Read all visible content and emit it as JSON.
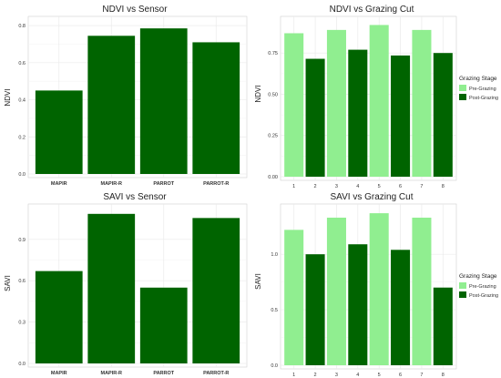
{
  "colors": {
    "pre": "#90ee90",
    "post": "#006400",
    "sensor": "#006400",
    "grid": "#ebebeb",
    "frame": "#d0d0d0"
  },
  "chart_data": [
    {
      "type": "bar",
      "title": "NDVI vs Sensor",
      "xlabel": "",
      "ylabel": "NDVI",
      "categories": [
        "MAPIR",
        "MAPIR-R",
        "PARROT",
        "PARROT-R"
      ],
      "values": [
        0.45,
        0.745,
        0.785,
        0.71
      ],
      "ylim": [
        0,
        0.83
      ],
      "yticks": [
        0.0,
        0.2,
        0.4,
        0.6,
        0.8
      ],
      "ytick_labels": [
        "0.0",
        "0.2",
        "0.4",
        "0.6",
        "0.8"
      ],
      "grid": true
    },
    {
      "type": "bar",
      "title": "NDVI vs Grazing Cut",
      "xlabel": "",
      "ylabel": "NDVI",
      "categories": [
        "1",
        "2",
        "3",
        "4",
        "5",
        "6",
        "7",
        "8"
      ],
      "values": [
        0.87,
        0.715,
        0.89,
        0.77,
        0.92,
        0.735,
        0.89,
        0.75
      ],
      "series_of_bar": [
        "pre",
        "post",
        "pre",
        "post",
        "pre",
        "post",
        "pre",
        "post"
      ],
      "ylim": [
        0,
        0.95
      ],
      "yticks": [
        0.0,
        0.25,
        0.5,
        0.75
      ],
      "ytick_labels": [
        "0.00",
        "0.25",
        "0.50",
        "0.75"
      ],
      "grid": true,
      "legend": {
        "title": "Grazing Stage",
        "position": "right",
        "entries": [
          {
            "label": "Pre-Grazing",
            "key": "pre"
          },
          {
            "label": "Post-Grazing",
            "key": "post"
          }
        ]
      }
    },
    {
      "type": "bar",
      "title": "SAVI vs Sensor",
      "xlabel": "",
      "ylabel": "SAVI",
      "categories": [
        "MAPIR",
        "MAPIR-R",
        "PARROT",
        "PARROT-R"
      ],
      "values": [
        0.67,
        1.085,
        0.55,
        1.055
      ],
      "ylim": [
        0,
        1.13
      ],
      "yticks": [
        0.0,
        0.3,
        0.6,
        0.9
      ],
      "ytick_labels": [
        "0.0",
        "0.3",
        "0.6",
        "0.9"
      ],
      "grid": true
    },
    {
      "type": "bar",
      "title": "SAVI vs Grazing Cut",
      "xlabel": "",
      "ylabel": "SAVI",
      "categories": [
        "1",
        "2",
        "3",
        "4",
        "5",
        "6",
        "7",
        "8"
      ],
      "values": [
        1.22,
        1.0,
        1.33,
        1.09,
        1.37,
        1.04,
        1.33,
        0.7
      ],
      "series_of_bar": [
        "pre",
        "post",
        "pre",
        "post",
        "pre",
        "post",
        "pre",
        "post"
      ],
      "ylim": [
        0,
        1.42
      ],
      "yticks": [
        0.0,
        0.5,
        1.0
      ],
      "ytick_labels": [
        "0.0",
        "0.5",
        "1.0"
      ],
      "grid": true,
      "legend": {
        "title": "Grazing Stage",
        "position": "right",
        "entries": [
          {
            "label": "Pre-Grazing",
            "key": "pre"
          },
          {
            "label": "Post-Grazing",
            "key": "post"
          }
        ]
      }
    }
  ]
}
